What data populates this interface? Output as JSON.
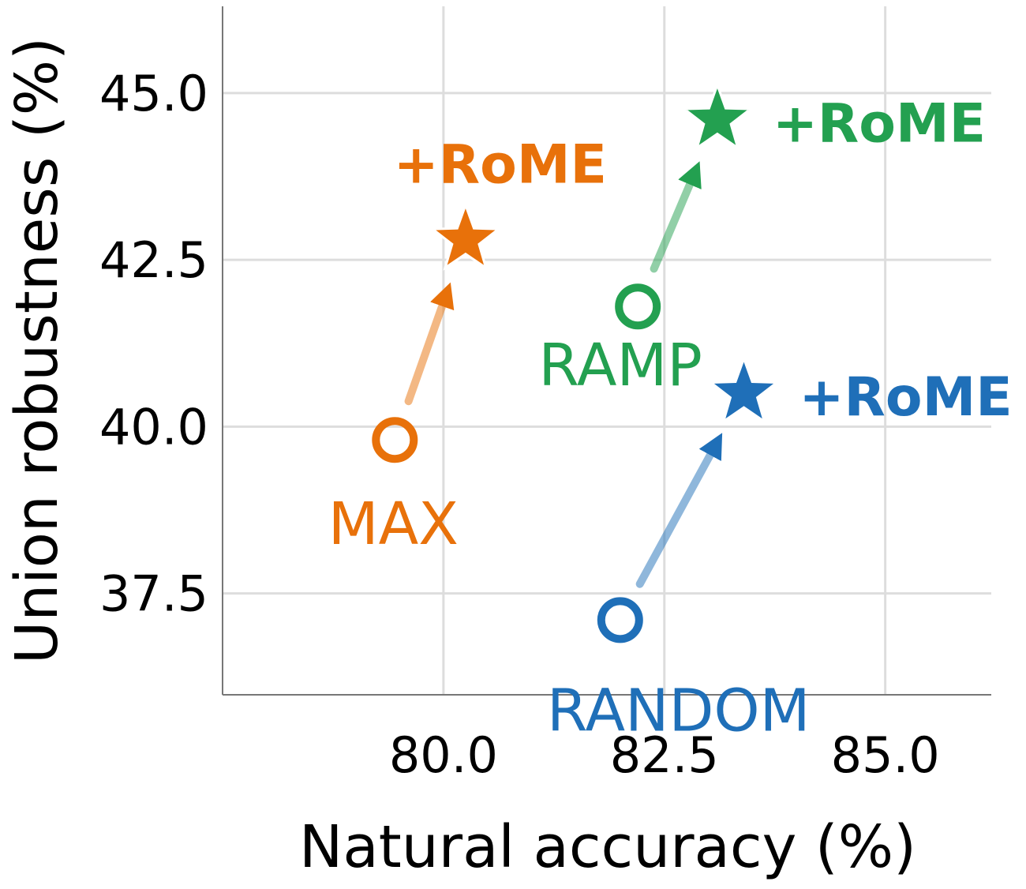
{
  "chart_data": {
    "type": "scatter",
    "xlabel": "Natural accuracy (%)",
    "ylabel": "Union robustness (%)",
    "xlim": [
      77.5,
      86.2
    ],
    "ylim": [
      35.98,
      46.3
    ],
    "xticks": [
      80.0,
      82.5,
      85.0
    ],
    "yticks": [
      37.5,
      40.0,
      42.5,
      45.0
    ],
    "xtick_labels": [
      "80.0",
      "82.5",
      "85.0"
    ],
    "ytick_labels": [
      "37.5",
      "40.0",
      "42.5",
      "45.0"
    ],
    "grid": true,
    "series": [
      {
        "name": "MAX",
        "color": "#e8710a",
        "base": {
          "x": 79.45,
          "y": 39.8,
          "label": "MAX"
        },
        "rome": {
          "x": 80.25,
          "y": 42.8,
          "label": "+RoME"
        }
      },
      {
        "name": "RAMP",
        "color": "#23a050",
        "base": {
          "x": 82.2,
          "y": 41.8,
          "label": "RAMP"
        },
        "rome": {
          "x": 83.1,
          "y": 44.6,
          "label": "+RoME"
        }
      },
      {
        "name": "RANDOM",
        "color": "#1f6fb8",
        "base": {
          "x": 82.0,
          "y": 37.1,
          "label": "RANDOM"
        },
        "rome": {
          "x": 83.4,
          "y": 40.5,
          "label": "+RoME"
        }
      }
    ]
  }
}
